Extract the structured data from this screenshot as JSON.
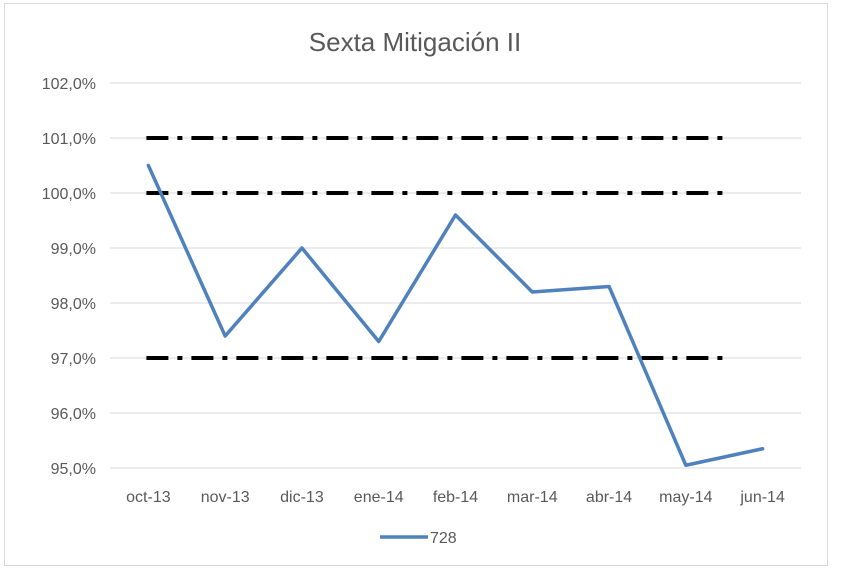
{
  "chart_data": {
    "type": "line",
    "title": "Sexta Mitigación II",
    "xlabel": "",
    "ylabel": "",
    "categories": [
      "oct-13",
      "nov-13",
      "dic-13",
      "ene-14",
      "feb-14",
      "mar-14",
      "abr-14",
      "may-14",
      "jun-14"
    ],
    "ylim": [
      95.0,
      102.0
    ],
    "yticks": [
      95.0,
      96.0,
      97.0,
      98.0,
      99.0,
      100.0,
      101.0,
      102.0
    ],
    "ytick_labels": [
      "95,0%",
      "96,0%",
      "97,0%",
      "98,0%",
      "99,0%",
      "100,0%",
      "101,0%",
      "102,0%"
    ],
    "grid": true,
    "legend_position": "bottom",
    "series": [
      {
        "name": "728",
        "color": "#4f81bd",
        "values": [
          100.5,
          97.4,
          99.0,
          97.3,
          99.6,
          98.2,
          98.3,
          95.05,
          95.35
        ]
      }
    ],
    "reference_lines": [
      {
        "value": 101.0,
        "style": "dash-dot",
        "color": "#000000"
      },
      {
        "value": 100.0,
        "style": "dash-dot",
        "color": "#000000"
      },
      {
        "value": 97.0,
        "style": "dash-dot",
        "color": "#000000"
      }
    ]
  }
}
